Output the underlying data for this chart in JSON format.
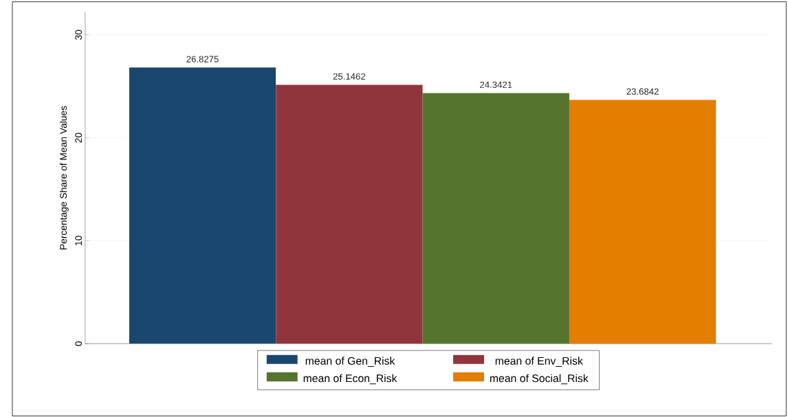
{
  "chart_data": {
    "type": "bar",
    "ylabel": "Percentage Share of Mean Values",
    "categories": [
      null
    ],
    "series": [
      {
        "name": "mean of Gen_Risk",
        "color": "#1a476f",
        "values": [
          26.8275
        ]
      },
      {
        "name": "mean of Env_Risk",
        "color": "#90353b",
        "values": [
          25.1462
        ]
      },
      {
        "name": "mean of Econ_Risk",
        "color": "#55752f",
        "values": [
          24.3421
        ]
      },
      {
        "name": "mean of Social_Risk",
        "color": "#e37e00",
        "values": [
          23.6842
        ]
      }
    ],
    "ylim": [
      0,
      32.2
    ],
    "yticks": [
      0,
      10,
      20,
      30
    ],
    "grid": "y",
    "legend": "bottom",
    "data_labels": true
  }
}
